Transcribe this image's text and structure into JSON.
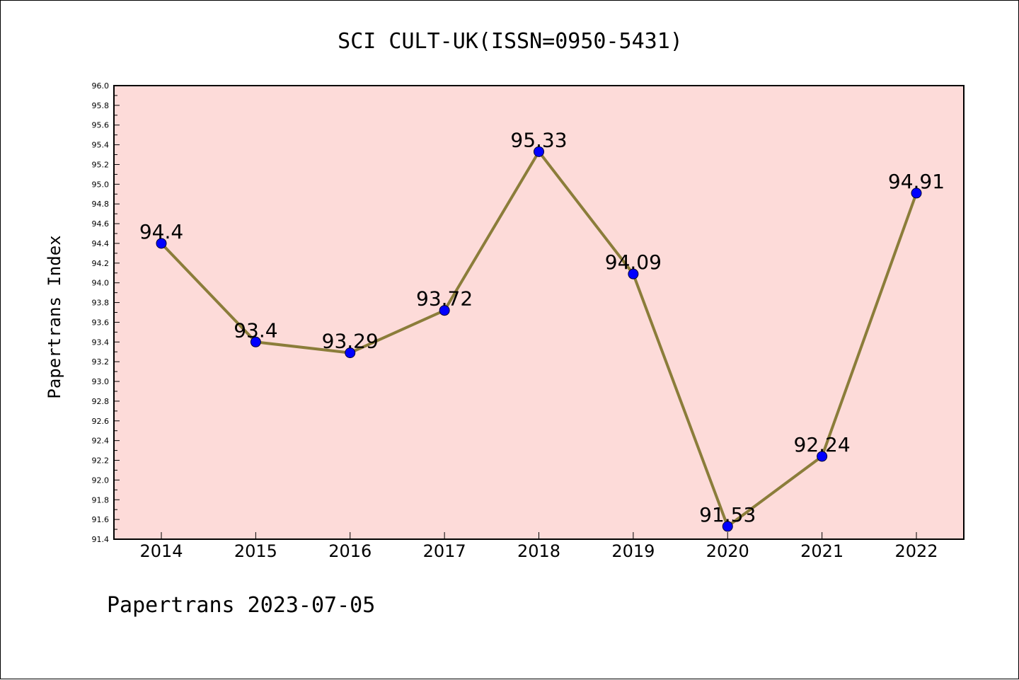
{
  "chart_data": {
    "type": "line",
    "title": "SCI CULT-UK(ISSN=0950-5431)",
    "xlabel": "",
    "ylabel": "Papertrans Index",
    "x": [
      "2014",
      "2015",
      "2016",
      "2017",
      "2018",
      "2019",
      "2020",
      "2021",
      "2022"
    ],
    "values": [
      94.4,
      93.4,
      93.29,
      93.72,
      95.33,
      94.09,
      91.53,
      92.24,
      94.91
    ],
    "data_labels": [
      "94.4",
      "93.4",
      "93.29",
      "93.72",
      "95.33",
      "94.09",
      "91.53",
      "92.24",
      "94.91"
    ],
    "ylim": [
      91.4,
      96.0
    ],
    "yticks": [
      "91.4",
      "91.6",
      "91.8",
      "92.0",
      "92.2",
      "92.4",
      "92.6",
      "92.8",
      "93.0",
      "93.2",
      "93.4",
      "93.6",
      "93.8",
      "94.0",
      "94.2",
      "94.4",
      "94.6",
      "94.8",
      "95.0",
      "95.2",
      "95.4",
      "95.6",
      "95.8",
      "96.0"
    ],
    "grid": false,
    "colors": {
      "plot_background": "#fddbd9",
      "line": "#8b7d3a",
      "marker": "#0000ff"
    }
  },
  "footer": "Papertrans 2023-07-05"
}
